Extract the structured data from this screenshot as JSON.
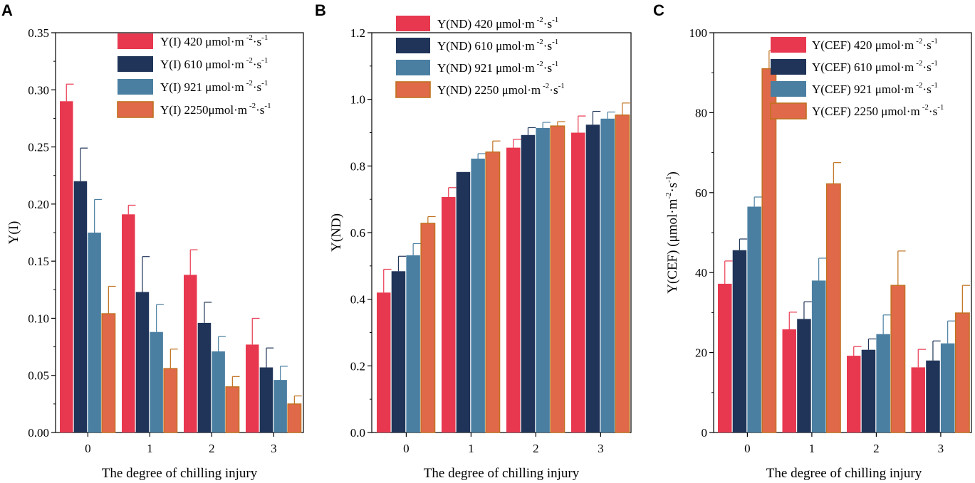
{
  "colors": {
    "s420": "#e8384f",
    "s610": "#1f3458",
    "s921": "#4a7fa2",
    "s2250": "#e0694a",
    "s2250_edge": "#c0711f",
    "err": "#e8384f"
  },
  "chart_data": [
    {
      "type": "bar",
      "panel": "A",
      "categories": [
        "0",
        "1",
        "2",
        "3"
      ],
      "xlabel": "The degree of chilling injury",
      "ylabel": "Y(I)",
      "ylim": [
        0,
        0.35
      ],
      "yticks": [
        0,
        0.05,
        0.1,
        0.15,
        0.2,
        0.25,
        0.3,
        0.35
      ],
      "ytick_labels": [
        "0.00",
        "0.05",
        "0.10",
        "0.15",
        "0.20",
        "0.25",
        "0.30",
        "0.35"
      ],
      "legend_position": "top-right",
      "series": [
        {
          "name": "Y(I) 420 μmol·m",
          "sup1": "-2",
          "mid": "·s",
          "sup2": "-1",
          "color": "s420",
          "values": [
            0.29,
            0.191,
            0.138,
            0.077
          ],
          "errors": [
            0.015,
            0.008,
            0.022,
            0.023
          ]
        },
        {
          "name": "Y(I) 610 μmol·m",
          "sup1": "-2",
          "mid": "·s",
          "sup2": "-1",
          "color": "s610",
          "values": [
            0.22,
            0.123,
            0.096,
            0.057
          ],
          "errors": [
            0.029,
            0.031,
            0.018,
            0.017
          ]
        },
        {
          "name": "Y(I) 921 μmol·m",
          "sup1": "-2",
          "mid": "·s",
          "sup2": "-1",
          "color": "s921",
          "values": [
            0.175,
            0.088,
            0.071,
            0.046
          ],
          "errors": [
            0.029,
            0.024,
            0.013,
            0.012
          ]
        },
        {
          "name": "Y(I) 2250μmol·m",
          "sup1": "-2",
          "mid": "·s",
          "sup2": "-1",
          "color": "s2250",
          "values": [
            0.104,
            0.056,
            0.04,
            0.025
          ],
          "errors": [
            0.024,
            0.017,
            0.009,
            0.007
          ]
        }
      ]
    },
    {
      "type": "bar",
      "panel": "B",
      "categories": [
        "0",
        "1",
        "2",
        "3"
      ],
      "xlabel": "The degree of chilling injury",
      "ylabel": "Y(ND)",
      "ylim": [
        0,
        1.2
      ],
      "yticks": [
        0,
        0.2,
        0.4,
        0.6,
        0.8,
        1.0,
        1.2
      ],
      "ytick_labels": [
        "0.0",
        "0.2",
        "0.4",
        "0.6",
        "0.8",
        "1.0",
        "1.2"
      ],
      "legend_position": "top-left",
      "series": [
        {
          "name": "Y(ND) 420 μmol·m",
          "sup1": "-2",
          "mid": "·s",
          "sup2": "-1",
          "color": "s420",
          "values": [
            0.42,
            0.707,
            0.855,
            0.9
          ],
          "errors": [
            0.07,
            0.028,
            0.025,
            0.05
          ]
        },
        {
          "name": "Y(ND) 610 μmol·m",
          "sup1": "-2",
          "mid": "·s",
          "sup2": "-1",
          "color": "s610",
          "values": [
            0.484,
            0.782,
            0.893,
            0.924
          ],
          "errors": [
            0.045,
            0.0,
            0.022,
            0.04
          ]
        },
        {
          "name": "Y(ND) 921 μmol·m",
          "sup1": "-2",
          "mid": "·s",
          "sup2": "-1",
          "color": "s921",
          "values": [
            0.532,
            0.822,
            0.914,
            0.942
          ],
          "errors": [
            0.035,
            0.015,
            0.017,
            0.02
          ]
        },
        {
          "name": "Y(ND) 2250 μmol·m",
          "sup1": "-2",
          "mid": "·s",
          "sup2": "-1",
          "color": "s2250",
          "values": [
            0.628,
            0.842,
            0.92,
            0.953
          ],
          "errors": [
            0.02,
            0.033,
            0.013,
            0.036
          ]
        }
      ]
    },
    {
      "type": "bar",
      "panel": "C",
      "categories": [
        "0",
        "1",
        "2",
        "3"
      ],
      "xlabel": "The degree of chilling injury",
      "ylabel": "Y(CEF) (μmol·m",
      "ylabel_sup1": "-2",
      "ylabel_mid": "·s",
      "ylabel_sup2": "-1",
      "ylabel_end": ")",
      "ylim": [
        0,
        100
      ],
      "yticks": [
        0,
        20,
        40,
        60,
        80,
        100
      ],
      "ytick_labels": [
        "0",
        "20",
        "40",
        "60",
        "80",
        "100"
      ],
      "legend_position": "top-right",
      "series": [
        {
          "name": "Y(CEF) 420 μmol·m",
          "sup1": "-2",
          "mid": "·s",
          "sup2": "-1",
          "color": "s420",
          "values": [
            37.2,
            25.8,
            19.2,
            16.3
          ],
          "errors": [
            5.7,
            4.3,
            2.3,
            4.5
          ]
        },
        {
          "name": "Y(CEF) 610 μmol·m",
          "sup1": "-2",
          "mid": "·s",
          "sup2": "-1",
          "color": "s610",
          "values": [
            45.6,
            28.4,
            20.7,
            18.0
          ],
          "errors": [
            2.8,
            4.3,
            2.7,
            4.9
          ]
        },
        {
          "name": "Y(CEF) 921 μmol·m",
          "sup1": "-2",
          "mid": "·s",
          "sup2": "-1",
          "color": "s921",
          "values": [
            56.5,
            38.0,
            24.6,
            22.3
          ],
          "errors": [
            2.4,
            5.6,
            4.8,
            5.6
          ]
        },
        {
          "name": "Y(CEF) 2250 μmol·m",
          "sup1": "-2",
          "mid": "·s",
          "sup2": "-1",
          "color": "s2250",
          "values": [
            91.0,
            62.2,
            36.8,
            29.9
          ],
          "errors": [
            4.5,
            5.3,
            8.6,
            6.9
          ]
        }
      ]
    }
  ]
}
